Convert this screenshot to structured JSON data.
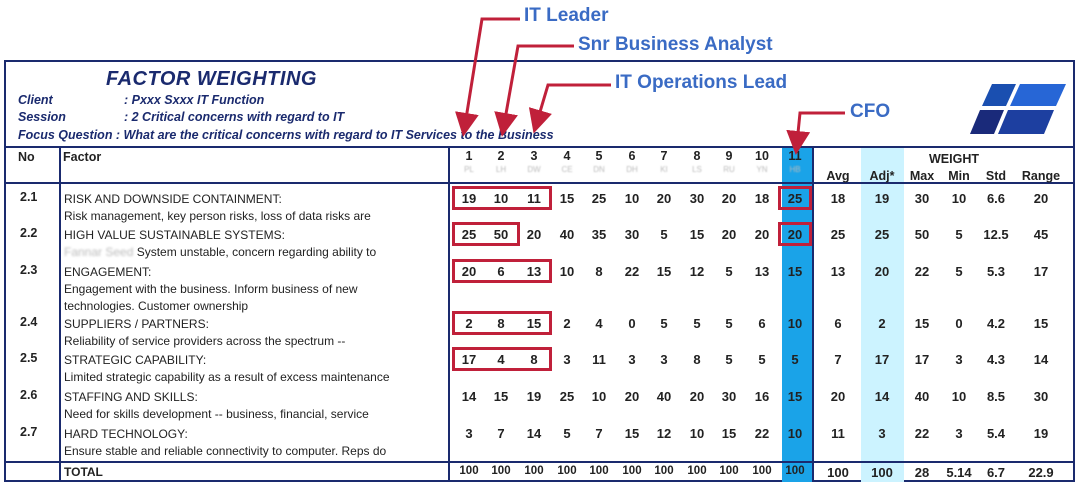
{
  "callouts": {
    "it_leader": "IT Leader",
    "snr_ba": "Snr Business Analyst",
    "it_ops": "IT Operations Lead",
    "cfo": "CFO"
  },
  "sheet": {
    "title": "FACTOR WEIGHTING",
    "client_label": "Client",
    "client_value": ": Pxxx Sxxx IT Function",
    "session_label": "Session",
    "session_value": ": 2 Critical concerns with regard to IT",
    "focus": "Focus Question : What are the critical concerns with regard to IT Services to the Business"
  },
  "columns": {
    "no": "No",
    "factor": "Factor",
    "participants": [
      "1",
      "2",
      "3",
      "4",
      "5",
      "6",
      "7",
      "8",
      "9",
      "10",
      "11"
    ],
    "initials": [
      "PL",
      "LH",
      "DW",
      "CE",
      "DN",
      "DH",
      "KI",
      "LS",
      "RU",
      "YN",
      "HB"
    ],
    "weight": "WEIGHT",
    "stats": [
      "Avg",
      "Adj*",
      "Max",
      "Min",
      "Std",
      "Range"
    ]
  },
  "rows": [
    {
      "no": "2.1",
      "title": "RISK AND DOWNSIDE CONTAINMENT:",
      "desc": [
        "Risk management, key person risks, loss of data risks are"
      ],
      "scores": [
        "19",
        "10",
        "11",
        "15",
        "25",
        "10",
        "20",
        "30",
        "20",
        "18",
        "25"
      ],
      "stats": [
        "18",
        "19",
        "30",
        "10",
        "6.6",
        "20"
      ]
    },
    {
      "no": "2.2",
      "title": "HIGH VALUE SUSTAINABLE SYSTEMS:",
      "desc_blur": "Fannar Seed",
      "desc": [
        "System unstable, concern regarding ability to"
      ],
      "scores": [
        "25",
        "50",
        "20",
        "40",
        "35",
        "30",
        "5",
        "15",
        "20",
        "20",
        "20"
      ],
      "stats": [
        "25",
        "25",
        "50",
        "5",
        "12.5",
        "45"
      ]
    },
    {
      "no": "2.3",
      "title": "ENGAGEMENT:",
      "desc": [
        "Engagement with the business.  Inform business of new",
        "technologies.  Customer ownership"
      ],
      "scores": [
        "20",
        "6",
        "13",
        "10",
        "8",
        "22",
        "15",
        "12",
        "5",
        "13",
        "15"
      ],
      "stats": [
        "13",
        "20",
        "22",
        "5",
        "5.3",
        "17"
      ]
    },
    {
      "no": "2.4",
      "title": "SUPPLIERS / PARTNERS:",
      "desc": [
        "Reliability of service providers across the spectrum --"
      ],
      "scores": [
        "2",
        "8",
        "15",
        "2",
        "4",
        "0",
        "5",
        "5",
        "5",
        "6",
        "10"
      ],
      "stats": [
        "6",
        "2",
        "15",
        "0",
        "4.2",
        "15"
      ]
    },
    {
      "no": "2.5",
      "title": "STRATEGIC CAPABILITY:",
      "desc": [
        "Limited strategic capability as a result of excess maintenance"
      ],
      "scores": [
        "17",
        "4",
        "8",
        "3",
        "11",
        "3",
        "3",
        "8",
        "5",
        "5",
        "5"
      ],
      "stats": [
        "7",
        "17",
        "17",
        "3",
        "4.3",
        "14"
      ]
    },
    {
      "no": "2.6",
      "title": "STAFFING AND SKILLS:",
      "desc": [
        "Need for skills development -- business, financial, service"
      ],
      "scores": [
        "14",
        "15",
        "19",
        "25",
        "10",
        "20",
        "40",
        "20",
        "30",
        "16",
        "15"
      ],
      "stats": [
        "20",
        "14",
        "40",
        "10",
        "8.5",
        "30"
      ]
    },
    {
      "no": "2.7",
      "title": "HARD TECHNOLOGY:",
      "desc": [
        "Ensure stable and reliable connectivity to computer.  Reps do"
      ],
      "scores": [
        "3",
        "7",
        "14",
        "5",
        "7",
        "15",
        "12",
        "10",
        "15",
        "22",
        "10"
      ],
      "stats": [
        "11",
        "3",
        "22",
        "3",
        "5.4",
        "19"
      ]
    }
  ],
  "total": {
    "label": "TOTAL",
    "scores": [
      "100",
      "100",
      "100",
      "100",
      "100",
      "100",
      "100",
      "100",
      "100",
      "100",
      "100"
    ],
    "stats": [
      "100",
      "100",
      "28",
      "5.14",
      "6.7",
      "22.9"
    ]
  },
  "colors": {
    "header_navy": "#1a2a6e",
    "cfo_blue": "#1aa3e8",
    "adj_light": "#ccf3ff",
    "highlight_red": "#c0203a",
    "callout_blue": "#3a6bc4"
  }
}
